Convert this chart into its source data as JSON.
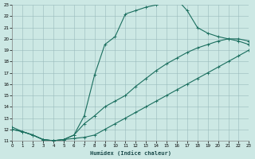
{
  "xlabel": "Humidex (Indice chaleur)",
  "bg_color": "#cce8e4",
  "grid_color": "#99bbbb",
  "line_color": "#1a6e5e",
  "xmin": 0,
  "xmax": 23,
  "ymin": 11,
  "ymax": 23,
  "x_ticks": [
    0,
    1,
    2,
    3,
    4,
    5,
    6,
    7,
    8,
    9,
    10,
    11,
    12,
    13,
    14,
    15,
    16,
    17,
    18,
    19,
    20,
    21,
    22,
    23
  ],
  "y_ticks": [
    11,
    12,
    13,
    14,
    15,
    16,
    17,
    18,
    19,
    20,
    21,
    22,
    23
  ],
  "line1_x": [
    0,
    1,
    2,
    3,
    4,
    5,
    6,
    7,
    8,
    9,
    10,
    11,
    12,
    13,
    14,
    15,
    16,
    17,
    18,
    19,
    20,
    21,
    22,
    23
  ],
  "line1_y": [
    12.0,
    11.8,
    11.5,
    11.1,
    11.0,
    11.1,
    11.2,
    11.3,
    11.5,
    12.0,
    12.5,
    13.0,
    13.5,
    14.0,
    14.5,
    15.0,
    15.5,
    16.0,
    16.5,
    17.0,
    17.5,
    18.0,
    18.5,
    19.0
  ],
  "line2_x": [
    0,
    1,
    2,
    3,
    4,
    5,
    6,
    7,
    8,
    9,
    10,
    11,
    12,
    13,
    14,
    15,
    16,
    17,
    18,
    19,
    20,
    21,
    22,
    23
  ],
  "line2_y": [
    12.0,
    11.8,
    11.5,
    11.1,
    11.0,
    11.1,
    11.5,
    12.5,
    13.2,
    14.0,
    14.5,
    15.0,
    15.8,
    16.5,
    17.2,
    17.8,
    18.3,
    18.8,
    19.2,
    19.5,
    19.8,
    20.0,
    20.0,
    19.8
  ],
  "line3_x": [
    0,
    1,
    2,
    3,
    4,
    5,
    6,
    7,
    8,
    9,
    10,
    11,
    12,
    13,
    14,
    15,
    16,
    17,
    18,
    19,
    20,
    21,
    22,
    23
  ],
  "line3_y": [
    12.2,
    11.8,
    11.5,
    11.1,
    11.0,
    11.1,
    11.5,
    13.2,
    16.8,
    19.5,
    20.2,
    22.2,
    22.5,
    22.8,
    23.0,
    23.2,
    23.5,
    22.5,
    21.0,
    20.5,
    20.2,
    20.0,
    19.8,
    19.5
  ]
}
